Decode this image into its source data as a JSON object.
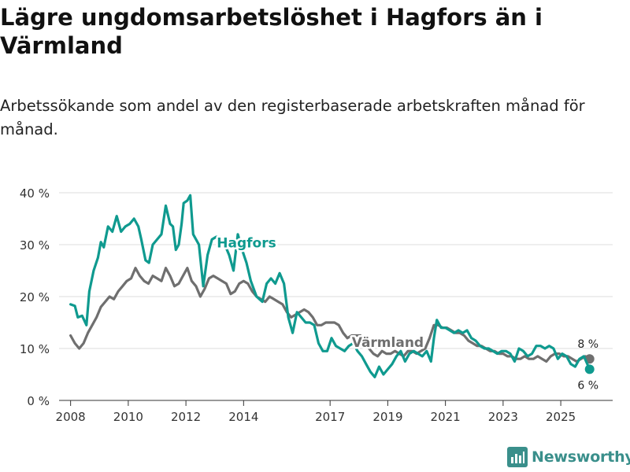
{
  "title": "Lägre ungdomsarbetslöshet i Hagfors än i Värmland",
  "subtitle": "Arbetssökande som andel av den registerbaserade arbetskraften månad för månad.",
  "brand": {
    "name": "Newsworthy",
    "logo": "bar-chart-logo-icon"
  },
  "colors": {
    "hagfors": "#0f9a8f",
    "varmland": "#6f6f6f",
    "grid": "#dedede",
    "text": "#333333"
  },
  "chart_data": {
    "type": "line",
    "title": "Lägre ungdomsarbetslöshet i Hagfors än i Värmland",
    "xlabel": "",
    "ylabel": "",
    "xlim": [
      2007.6,
      2026.8
    ],
    "ylim": [
      0,
      40
    ],
    "yticks": [
      0,
      10,
      20,
      30,
      40
    ],
    "ytick_labels": [
      "0 %",
      "10 %",
      "20 %",
      "30 %",
      "40 %"
    ],
    "xticks": [
      2008,
      2010,
      2012,
      2014,
      2017,
      2019,
      2021,
      2023,
      2025
    ],
    "xtick_labels": [
      "2008",
      "2010",
      "2012",
      "2014",
      "2017",
      "2019",
      "2021",
      "2023",
      "2025"
    ],
    "grid": true,
    "series": [
      {
        "name": "Hagfors",
        "label": "Hagfors",
        "end_label": "6 %",
        "points": [
          [
            2008.0,
            18.5
          ],
          [
            2008.15,
            18.2
          ],
          [
            2008.25,
            16.0
          ],
          [
            2008.4,
            16.3
          ],
          [
            2008.55,
            14.5
          ],
          [
            2008.65,
            21.0
          ],
          [
            2008.8,
            25.0
          ],
          [
            2008.95,
            27.5
          ],
          [
            2009.05,
            30.5
          ],
          [
            2009.15,
            29.5
          ],
          [
            2009.3,
            33.5
          ],
          [
            2009.45,
            32.5
          ],
          [
            2009.6,
            35.5
          ],
          [
            2009.75,
            32.5
          ],
          [
            2009.9,
            33.5
          ],
          [
            2010.05,
            34.0
          ],
          [
            2010.2,
            35.0
          ],
          [
            2010.35,
            33.5
          ],
          [
            2010.45,
            31.0
          ],
          [
            2010.6,
            27.0
          ],
          [
            2010.72,
            26.5
          ],
          [
            2010.85,
            30.0
          ],
          [
            2011.0,
            31.0
          ],
          [
            2011.15,
            32.0
          ],
          [
            2011.3,
            37.5
          ],
          [
            2011.45,
            34.0
          ],
          [
            2011.55,
            33.5
          ],
          [
            2011.65,
            29.0
          ],
          [
            2011.75,
            30.0
          ],
          [
            2011.85,
            34.0
          ],
          [
            2011.92,
            38.0
          ],
          [
            2012.05,
            38.5
          ],
          [
            2012.15,
            39.5
          ],
          [
            2012.25,
            32.0
          ],
          [
            2012.45,
            30.0
          ],
          [
            2012.6,
            22.0
          ],
          [
            2012.75,
            28.0
          ],
          [
            2012.9,
            31.0
          ],
          [
            2013.05,
            31.5
          ],
          [
            2013.2,
            31.5
          ],
          [
            2013.35,
            30.0
          ],
          [
            2013.5,
            28.0
          ],
          [
            2013.65,
            25.0
          ],
          [
            2013.8,
            32.0
          ],
          [
            2013.95,
            29.0
          ],
          [
            2014.1,
            26.5
          ],
          [
            2014.25,
            23.0
          ],
          [
            2014.45,
            20.0
          ],
          [
            2014.65,
            19.0
          ],
          [
            2014.8,
            22.5
          ],
          [
            2014.95,
            23.5
          ],
          [
            2015.1,
            22.5
          ],
          [
            2015.25,
            24.5
          ],
          [
            2015.4,
            22.5
          ],
          [
            2015.55,
            16.0
          ],
          [
            2015.7,
            13.0
          ],
          [
            2015.85,
            17.0
          ],
          [
            2016.0,
            16.0
          ],
          [
            2016.15,
            15.0
          ],
          [
            2016.3,
            15.0
          ],
          [
            2016.45,
            14.5
          ],
          [
            2016.6,
            11.0
          ],
          [
            2016.75,
            9.5
          ],
          [
            2016.9,
            9.5
          ],
          [
            2017.05,
            12.0
          ],
          [
            2017.2,
            10.5
          ],
          [
            2017.35,
            10.0
          ],
          [
            2017.5,
            9.5
          ],
          [
            2017.65,
            10.5
          ],
          [
            2017.8,
            11.0
          ],
          [
            2017.95,
            9.5
          ],
          [
            2018.1,
            8.5
          ],
          [
            2018.25,
            7.0
          ],
          [
            2018.4,
            5.5
          ],
          [
            2018.55,
            4.5
          ],
          [
            2018.7,
            6.5
          ],
          [
            2018.85,
            5.0
          ],
          [
            2019.0,
            6.0
          ],
          [
            2019.15,
            7.0
          ],
          [
            2019.3,
            8.5
          ],
          [
            2019.45,
            9.5
          ],
          [
            2019.6,
            7.5
          ],
          [
            2019.75,
            9.0
          ],
          [
            2019.9,
            9.5
          ],
          [
            2020.05,
            9.0
          ],
          [
            2020.2,
            8.5
          ],
          [
            2020.35,
            9.5
          ],
          [
            2020.5,
            7.5
          ],
          [
            2020.6,
            12.0
          ],
          [
            2020.7,
            15.5
          ],
          [
            2020.85,
            14.0
          ],
          [
            2021.0,
            14.0
          ],
          [
            2021.15,
            13.5
          ],
          [
            2021.3,
            13.0
          ],
          [
            2021.45,
            13.5
          ],
          [
            2021.6,
            13.0
          ],
          [
            2021.75,
            13.5
          ],
          [
            2021.9,
            12.0
          ],
          [
            2022.05,
            11.5
          ],
          [
            2022.2,
            10.5
          ],
          [
            2022.35,
            10.0
          ],
          [
            2022.5,
            10.0
          ],
          [
            2022.65,
            9.5
          ],
          [
            2022.8,
            9.0
          ],
          [
            2022.95,
            9.5
          ],
          [
            2023.1,
            9.5
          ],
          [
            2023.25,
            9.0
          ],
          [
            2023.4,
            7.5
          ],
          [
            2023.55,
            10.0
          ],
          [
            2023.7,
            9.5
          ],
          [
            2023.85,
            8.5
          ],
          [
            2024.0,
            9.0
          ],
          [
            2024.15,
            10.5
          ],
          [
            2024.3,
            10.5
          ],
          [
            2024.45,
            10.0
          ],
          [
            2024.6,
            10.5
          ],
          [
            2024.75,
            10.0
          ],
          [
            2024.9,
            8.0
          ],
          [
            2025.05,
            9.0
          ],
          [
            2025.2,
            8.5
          ],
          [
            2025.35,
            7.0
          ],
          [
            2025.5,
            6.5
          ],
          [
            2025.65,
            8.0
          ],
          [
            2025.8,
            8.5
          ],
          [
            2026.0,
            6.0
          ]
        ]
      },
      {
        "name": "Värmland",
        "label": "Värmland",
        "end_label": "8 %",
        "points": [
          [
            2008.0,
            12.5
          ],
          [
            2008.15,
            11.0
          ],
          [
            2008.3,
            10.0
          ],
          [
            2008.45,
            11.0
          ],
          [
            2008.6,
            13.0
          ],
          [
            2008.75,
            14.5
          ],
          [
            2008.9,
            16.0
          ],
          [
            2009.05,
            18.0
          ],
          [
            2009.2,
            19.0
          ],
          [
            2009.35,
            20.0
          ],
          [
            2009.5,
            19.5
          ],
          [
            2009.65,
            21.0
          ],
          [
            2009.8,
            22.0
          ],
          [
            2009.95,
            23.0
          ],
          [
            2010.1,
            23.5
          ],
          [
            2010.25,
            25.5
          ],
          [
            2010.4,
            24.0
          ],
          [
            2010.55,
            23.0
          ],
          [
            2010.7,
            22.5
          ],
          [
            2010.85,
            24.0
          ],
          [
            2011.0,
            23.5
          ],
          [
            2011.15,
            23.0
          ],
          [
            2011.3,
            25.5
          ],
          [
            2011.45,
            24.0
          ],
          [
            2011.6,
            22.0
          ],
          [
            2011.75,
            22.5
          ],
          [
            2011.9,
            24.0
          ],
          [
            2012.05,
            25.5
          ],
          [
            2012.2,
            23.0
          ],
          [
            2012.35,
            22.0
          ],
          [
            2012.5,
            20.0
          ],
          [
            2012.65,
            21.5
          ],
          [
            2012.8,
            23.5
          ],
          [
            2012.95,
            24.0
          ],
          [
            2013.1,
            23.5
          ],
          [
            2013.25,
            23.0
          ],
          [
            2013.4,
            22.5
          ],
          [
            2013.55,
            20.5
          ],
          [
            2013.7,
            21.0
          ],
          [
            2013.85,
            22.5
          ],
          [
            2014.0,
            23.0
          ],
          [
            2014.15,
            22.5
          ],
          [
            2014.3,
            21.0
          ],
          [
            2014.45,
            20.0
          ],
          [
            2014.6,
            19.5
          ],
          [
            2014.75,
            19.0
          ],
          [
            2014.9,
            20.0
          ],
          [
            2015.05,
            19.5
          ],
          [
            2015.2,
            19.0
          ],
          [
            2015.35,
            18.5
          ],
          [
            2015.5,
            17.0
          ],
          [
            2015.65,
            16.0
          ],
          [
            2015.8,
            16.5
          ],
          [
            2015.95,
            17.0
          ],
          [
            2016.1,
            17.5
          ],
          [
            2016.25,
            17.0
          ],
          [
            2016.4,
            16.0
          ],
          [
            2016.55,
            14.5
          ],
          [
            2016.7,
            14.5
          ],
          [
            2016.85,
            15.0
          ],
          [
            2017.0,
            15.0
          ],
          [
            2017.15,
            15.0
          ],
          [
            2017.3,
            14.5
          ],
          [
            2017.45,
            13.0
          ],
          [
            2017.6,
            12.0
          ],
          [
            2017.75,
            12.5
          ],
          [
            2017.9,
            12.5
          ],
          [
            2018.05,
            12.5
          ],
          [
            2018.2,
            11.5
          ],
          [
            2018.35,
            10.0
          ],
          [
            2018.5,
            9.0
          ],
          [
            2018.65,
            8.5
          ],
          [
            2018.8,
            9.5
          ],
          [
            2018.95,
            9.0
          ],
          [
            2019.1,
            9.0
          ],
          [
            2019.25,
            9.5
          ],
          [
            2019.4,
            9.0
          ],
          [
            2019.55,
            8.5
          ],
          [
            2019.7,
            9.5
          ],
          [
            2019.85,
            9.5
          ],
          [
            2020.0,
            9.0
          ],
          [
            2020.15,
            9.5
          ],
          [
            2020.3,
            10.0
          ],
          [
            2020.45,
            12.0
          ],
          [
            2020.6,
            14.5
          ],
          [
            2020.75,
            14.5
          ],
          [
            2020.9,
            14.0
          ],
          [
            2021.05,
            14.0
          ],
          [
            2021.2,
            13.5
          ],
          [
            2021.35,
            13.0
          ],
          [
            2021.5,
            13.0
          ],
          [
            2021.65,
            12.5
          ],
          [
            2021.8,
            11.5
          ],
          [
            2021.95,
            11.0
          ],
          [
            2022.1,
            10.5
          ],
          [
            2022.25,
            10.5
          ],
          [
            2022.4,
            10.0
          ],
          [
            2022.55,
            9.5
          ],
          [
            2022.7,
            9.5
          ],
          [
            2022.85,
            9.0
          ],
          [
            2023.0,
            9.0
          ],
          [
            2023.15,
            8.5
          ],
          [
            2023.3,
            8.5
          ],
          [
            2023.45,
            8.0
          ],
          [
            2023.6,
            8.0
          ],
          [
            2023.75,
            8.5
          ],
          [
            2023.9,
            8.0
          ],
          [
            2024.05,
            8.0
          ],
          [
            2024.2,
            8.5
          ],
          [
            2024.35,
            8.0
          ],
          [
            2024.5,
            7.5
          ],
          [
            2024.65,
            8.5
          ],
          [
            2024.8,
            9.0
          ],
          [
            2024.95,
            9.0
          ],
          [
            2025.1,
            8.5
          ],
          [
            2025.25,
            8.5
          ],
          [
            2025.4,
            8.0
          ],
          [
            2025.55,
            7.5
          ],
          [
            2025.7,
            8.0
          ],
          [
            2025.85,
            8.5
          ],
          [
            2026.0,
            8.0
          ]
        ]
      }
    ]
  }
}
